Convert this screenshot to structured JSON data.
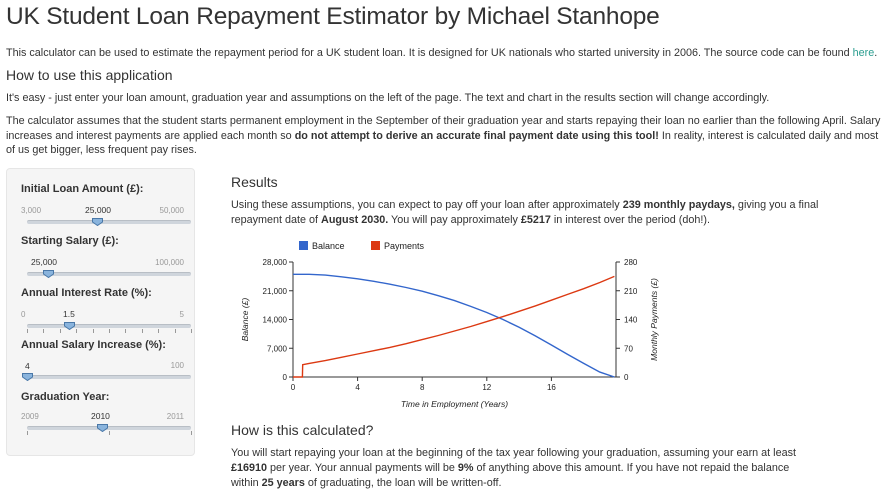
{
  "header": {
    "title": "UK Student Loan Repayment Estimator by Michael Stanhope",
    "intro_text": "This calculator can be used to estimate the repayment period for a UK student loan. It is designed for UK nationals who started university in 2006. The source code can be found ",
    "intro_link": "here",
    "intro_end": "."
  },
  "howto": {
    "heading": "How to use this application",
    "line1": "It's easy - just enter your loan amount, graduation year and assumptions on the left of the page. The text and chart in the results section will change accordingly.",
    "line2a": "The calculator assumes that the student starts permanent employment in the September of their graduation year and starts repaying their loan no earlier than the following April. Salary increases and interest payments are applied each month so ",
    "line2b": "do not attempt to derive an accurate final payment date using this tool!",
    "line2c": " In reality, interest is calculated daily and most of us get bigger, less frequent pay rises."
  },
  "sidebar": {
    "loan": {
      "label": "Initial Loan Amount (£):",
      "min": "3,000",
      "max": "50,000",
      "value": "25,000",
      "fraction": 0.468
    },
    "salary": {
      "label": "Starting Salary (£):",
      "min": "",
      "max": "100,000",
      "value": "25,000",
      "fraction": 0.0
    },
    "interest": {
      "label": "Annual Interest Rate (%):",
      "min": "0",
      "max": "5",
      "value": "1.5",
      "fraction": 0.3
    },
    "increase": {
      "label": "Annual Salary Increase (%):",
      "min": "",
      "max": "100",
      "value": "4",
      "fraction": 0.04
    },
    "grad": {
      "label": "Graduation Year:",
      "min": "2009",
      "max": "2011",
      "value": "2010",
      "fraction": 0.5
    }
  },
  "results": {
    "heading": "Results",
    "t1": "Using these assumptions, you can expect to pay off your loan after approximately ",
    "months": "239 monthly paydays,",
    "t2": " giving you a final repayment date of ",
    "date": "August 2030.",
    "t3": " You will pay approximately ",
    "interest": "£5217",
    "t4": " in interest over the period (doh!)."
  },
  "calc": {
    "heading": "How is this calculated?",
    "t1": "You will start repaying your loan at the beginning of the tax year following your graduation, assuming your earn at least ",
    "threshold": "£16910",
    "t2": " per year. Your annual payments will be ",
    "rate": "9%",
    "t3": " of anything above this amount. If you have not repaid the balance within ",
    "years": "25 years",
    "t4": " of graduating, the loan will be written-off."
  },
  "chart_data": {
    "type": "line",
    "xlabel": "Time in Employment (Years)",
    "ylabel": "Balance (£)",
    "y2label": "Monthly Payments (£)",
    "xlim": [
      0,
      20
    ],
    "ylim": [
      0,
      28000
    ],
    "y2lim": [
      0,
      280
    ],
    "xticks": [
      "0",
      "4",
      "8",
      "12",
      "16"
    ],
    "yticks": [
      "0",
      "7,000",
      "14,000",
      "21,000",
      "28,000"
    ],
    "y2ticks": [
      "0",
      "70",
      "140",
      "210",
      "280"
    ],
    "legend_position": "top-left",
    "colors": {
      "balance": "#3366cc",
      "payments": "#dc3912"
    },
    "series": [
      {
        "name": "Balance",
        "axis": "left",
        "x": [
          0,
          1,
          2,
          3,
          4,
          5,
          6,
          7,
          8,
          9,
          10,
          11,
          12,
          13,
          14,
          15,
          16,
          17,
          18,
          19,
          19.9
        ],
        "y": [
          25000,
          25000,
          24800,
          24400,
          23900,
          23300,
          22600,
          21800,
          20900,
          19800,
          18600,
          17200,
          15700,
          14000,
          12100,
          10000,
          7800,
          5500,
          3300,
          1200,
          0
        ]
      },
      {
        "name": "Payments",
        "axis": "right",
        "x": [
          0,
          0.58,
          0.6,
          1,
          2,
          3,
          4,
          5,
          6,
          7,
          8,
          9,
          10,
          11,
          12,
          13,
          14,
          15,
          16,
          17,
          18,
          19,
          19.9
        ],
        "y": [
          0,
          0,
          30,
          33,
          40,
          48,
          56,
          64,
          72,
          81,
          91,
          101,
          112,
          123,
          135,
          147,
          160,
          173,
          187,
          201,
          215,
          230,
          245
        ]
      }
    ]
  }
}
